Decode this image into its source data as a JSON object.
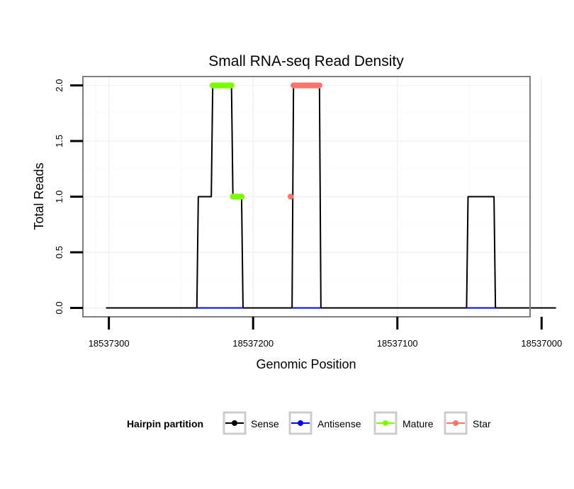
{
  "chart_data": {
    "type": "line",
    "title": "Small RNA-seq Read Density",
    "xlabel": "Genomic Position",
    "ylabel": "Total Reads",
    "xlim": [
      18537318,
      18537008
    ],
    "x_reversed": true,
    "ylim": [
      -0.08,
      2.08
    ],
    "x_ticks": [
      18537300,
      18537200,
      18537100,
      18537000
    ],
    "x_tick_labels": [
      "18537300",
      "18537200",
      "18537100",
      "18537000"
    ],
    "y_ticks": [
      0.0,
      0.5,
      1.0,
      1.5,
      2.0
    ],
    "y_tick_labels": [
      "0.0",
      "0.5",
      "1.0",
      "1.5",
      "2.0"
    ],
    "grid": true,
    "legend": {
      "title": "Hairpin partition",
      "position": "bottom",
      "entries": [
        {
          "label": "Sense",
          "color": "#000000"
        },
        {
          "label": "Antisense",
          "color": "#0000ff"
        },
        {
          "label": "Mature",
          "color": "#7cfc00"
        },
        {
          "label": "Star",
          "color": "#f8766d"
        }
      ]
    },
    "series": [
      {
        "name": "Sense",
        "color": "#000000",
        "style": "line",
        "points": [
          [
            18537302,
            0
          ],
          [
            18537239,
            0
          ],
          [
            18537238,
            1
          ],
          [
            18537229,
            1
          ],
          [
            18537228,
            2
          ],
          [
            18537215,
            2
          ],
          [
            18537214,
            1
          ],
          [
            18537208,
            1
          ],
          [
            18537207,
            0
          ],
          [
            18537173,
            0
          ],
          [
            18537172,
            2
          ],
          [
            18537154,
            2
          ],
          [
            18537153,
            0
          ],
          [
            18537052,
            0
          ],
          [
            18537051,
            1
          ],
          [
            18537033,
            1
          ],
          [
            18537032,
            0
          ],
          [
            18536990,
            0
          ]
        ]
      },
      {
        "name": "Antisense",
        "color": "#0000ff",
        "style": "line",
        "segments": [
          [
            [
              18537239,
              0
            ],
            [
              18537207,
              0
            ]
          ],
          [
            [
              18537173,
              0
            ],
            [
              18537153,
              0
            ]
          ],
          [
            [
              18537052,
              0
            ],
            [
              18537032,
              0
            ]
          ]
        ]
      },
      {
        "name": "Mature",
        "color": "#7cfc00",
        "style": "points",
        "points": [
          [
            18537228,
            2
          ],
          [
            18537227,
            2
          ],
          [
            18537226,
            2
          ],
          [
            18537225,
            2
          ],
          [
            18537224,
            2
          ],
          [
            18537223,
            2
          ],
          [
            18537222,
            2
          ],
          [
            18537221,
            2
          ],
          [
            18537220,
            2
          ],
          [
            18537219,
            2
          ],
          [
            18537218,
            2
          ],
          [
            18537217,
            2
          ],
          [
            18537216,
            2
          ],
          [
            18537215,
            2
          ],
          [
            18537214,
            1
          ],
          [
            18537213,
            1
          ],
          [
            18537212,
            1
          ],
          [
            18537211,
            1
          ],
          [
            18537210,
            1
          ],
          [
            18537209,
            1
          ],
          [
            18537208,
            1
          ]
        ]
      },
      {
        "name": "Star",
        "color": "#f8766d",
        "style": "points",
        "points": [
          [
            18537174,
            1
          ],
          [
            18537172,
            2
          ],
          [
            18537171,
            2
          ],
          [
            18537170,
            2
          ],
          [
            18537169,
            2
          ],
          [
            18537168,
            2
          ],
          [
            18537167,
            2
          ],
          [
            18537166,
            2
          ],
          [
            18537165,
            2
          ],
          [
            18537164,
            2
          ],
          [
            18537163,
            2
          ],
          [
            18537162,
            2
          ],
          [
            18537161,
            2
          ],
          [
            18537160,
            2
          ],
          [
            18537159,
            2
          ],
          [
            18537158,
            2
          ],
          [
            18537157,
            2
          ],
          [
            18537156,
            2
          ],
          [
            18537155,
            2
          ],
          [
            18537154,
            2
          ]
        ]
      }
    ]
  }
}
